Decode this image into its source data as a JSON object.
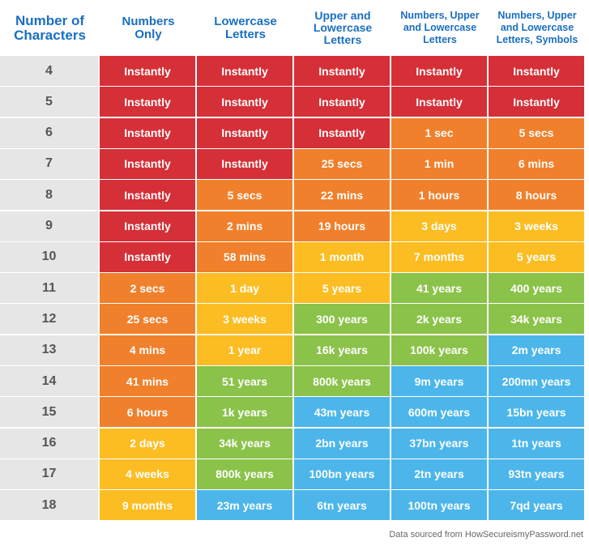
{
  "colors": {
    "red": "#d52f37",
    "orange": "#f0802c",
    "yellow": "#fbbd22",
    "green": "#8bc24a",
    "blue": "#4cb6ea",
    "header_text": "#1a6fc1",
    "row_label_bg": "#e6e6e6"
  },
  "chart_data": {
    "type": "table",
    "columns": [
      "Number of\nCharacters",
      "Numbers\nOnly",
      "Lowercase\nLetters",
      "Upper and\nLowercase\nLetters",
      "Numbers, Upper\nand Lowercase\nLetters",
      "Numbers, Upper\nand Lowercase\nLetters, Symbols"
    ],
    "rows": [
      {
        "label": "4",
        "values": [
          "Instantly",
          "Instantly",
          "Instantly",
          "Instantly",
          "Instantly"
        ],
        "colors": [
          "red",
          "red",
          "red",
          "red",
          "red"
        ]
      },
      {
        "label": "5",
        "values": [
          "Instantly",
          "Instantly",
          "Instantly",
          "Instantly",
          "Instantly"
        ],
        "colors": [
          "red",
          "red",
          "red",
          "red",
          "red"
        ]
      },
      {
        "label": "6",
        "values": [
          "Instantly",
          "Instantly",
          "Instantly",
          "1 sec",
          "5 secs"
        ],
        "colors": [
          "red",
          "red",
          "red",
          "orange",
          "orange"
        ]
      },
      {
        "label": "7",
        "values": [
          "Instantly",
          "Instantly",
          "25 secs",
          "1 min",
          "6 mins"
        ],
        "colors": [
          "red",
          "red",
          "orange",
          "orange",
          "orange"
        ]
      },
      {
        "label": "8",
        "values": [
          "Instantly",
          "5 secs",
          "22 mins",
          "1 hours",
          "8 hours"
        ],
        "colors": [
          "red",
          "orange",
          "orange",
          "orange",
          "orange"
        ]
      },
      {
        "label": "9",
        "values": [
          "Instantly",
          "2 mins",
          "19 hours",
          "3 days",
          "3 weeks"
        ],
        "colors": [
          "red",
          "orange",
          "orange",
          "yellow",
          "yellow"
        ]
      },
      {
        "label": "10",
        "values": [
          "Instantly",
          "58 mins",
          "1 month",
          "7 months",
          "5 years"
        ],
        "colors": [
          "red",
          "orange",
          "yellow",
          "yellow",
          "yellow"
        ]
      },
      {
        "label": "11",
        "values": [
          "2 secs",
          "1 day",
          "5 years",
          "41 years",
          "400 years"
        ],
        "colors": [
          "orange",
          "yellow",
          "yellow",
          "green",
          "green"
        ]
      },
      {
        "label": "12",
        "values": [
          "25 secs",
          "3 weeks",
          "300 years",
          "2k years",
          "34k years"
        ],
        "colors": [
          "orange",
          "yellow",
          "green",
          "green",
          "green"
        ]
      },
      {
        "label": "13",
        "values": [
          "4 mins",
          "1 year",
          "16k years",
          "100k years",
          "2m years"
        ],
        "colors": [
          "orange",
          "yellow",
          "green",
          "green",
          "blue"
        ]
      },
      {
        "label": "14",
        "values": [
          "41 mins",
          "51 years",
          "800k years",
          "9m years",
          "200mn years"
        ],
        "colors": [
          "orange",
          "green",
          "green",
          "blue",
          "blue"
        ]
      },
      {
        "label": "15",
        "values": [
          "6 hours",
          "1k years",
          "43m years",
          "600m years",
          "15bn years"
        ],
        "colors": [
          "orange",
          "green",
          "blue",
          "blue",
          "blue"
        ]
      },
      {
        "label": "16",
        "values": [
          "2 days",
          "34k years",
          "2bn years",
          "37bn years",
          "1tn years"
        ],
        "colors": [
          "yellow",
          "green",
          "blue",
          "blue",
          "blue"
        ]
      },
      {
        "label": "17",
        "values": [
          "4 weeks",
          "800k years",
          "100bn years",
          "2tn years",
          "93tn years"
        ],
        "colors": [
          "yellow",
          "green",
          "blue",
          "blue",
          "blue"
        ]
      },
      {
        "label": "18",
        "values": [
          "9 months",
          "23m years",
          "6tn years",
          "100tn years",
          "7qd years"
        ],
        "colors": [
          "yellow",
          "blue",
          "blue",
          "blue",
          "blue"
        ]
      }
    ]
  },
  "footer": {
    "source": "Data sourced from HowSecureismyPassword.net"
  }
}
